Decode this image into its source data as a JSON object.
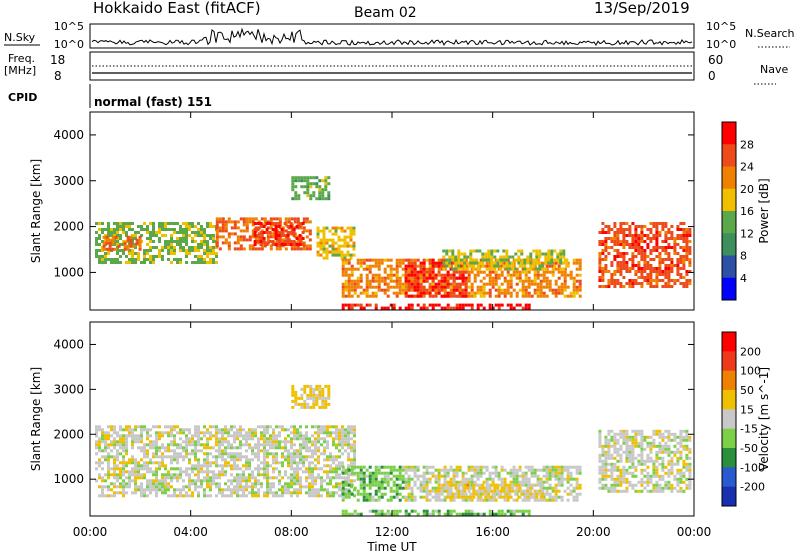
{
  "header": {
    "station": "Hokkaido East (fitACF)",
    "beam": "Beam 02",
    "date": "13/Sep/2019"
  },
  "top_panels": {
    "nsky_label": "N.Sky",
    "nsky_ticks": [
      "10^5",
      "10^0"
    ],
    "nsearch_label": "N.Search",
    "nsearch_ticks": [
      "10^5",
      "10^0"
    ],
    "freq_label_line1": "Freq.",
    "freq_label_line2": "[MHz]",
    "freq_ticks": [
      "18",
      "8"
    ],
    "nave_label": "Nave",
    "nave_ticks": [
      "60",
      "0"
    ],
    "cpid_label": "CPID",
    "cpid_value": "normal (fast) 151"
  },
  "colors": {
    "power_scale": [
      "#0000ff",
      "#2e4fa6",
      "#3d8f5c",
      "#5aa84a",
      "#f0c000",
      "#f08000",
      "#ee4a1a",
      "#ff0000"
    ],
    "velocity_scale": [
      "#1830b0",
      "#2a5ad0",
      "#2a8f3c",
      "#7cd048",
      "#c8c8c8",
      "#f0c000",
      "#f08000",
      "#ee3a1a",
      "#ff0000"
    ],
    "ground_gray": "#c0c0c0"
  },
  "chart_data": [
    {
      "type": "heatmap",
      "name": "power",
      "ylabel": "Slant Range [km]",
      "yticks": [
        "4000",
        "3000",
        "2000",
        "1000"
      ],
      "ylim": [
        180,
        4500
      ],
      "xticks": [
        "00:00",
        "04:00",
        "08:00",
        "12:00",
        "16:00",
        "20:00",
        "00:00"
      ],
      "xlim_hours": [
        0,
        24
      ],
      "colorbar_label": "Power [dB]",
      "colorbar_ticks": [
        "28",
        "24",
        "20",
        "16",
        "12",
        "8",
        "4"
      ],
      "colorbar_range": [
        0,
        32
      ],
      "regions": [
        {
          "t0": 0.2,
          "t1": 5.0,
          "r0": 1200,
          "r1": 2100,
          "v": 15
        },
        {
          "t0": 0.5,
          "t1": 2.0,
          "r0": 1500,
          "r1": 1800,
          "v": 24
        },
        {
          "t0": 5.0,
          "t1": 8.8,
          "r0": 1500,
          "r1": 2200,
          "v": 24
        },
        {
          "t0": 6.5,
          "t1": 8.5,
          "r0": 1600,
          "r1": 2100,
          "v": 28
        },
        {
          "t0": 9.0,
          "t1": 10.5,
          "r0": 1300,
          "r1": 2000,
          "v": 18
        },
        {
          "t0": 10.0,
          "t1": 19.5,
          "r0": 500,
          "r1": 1300,
          "v": 22
        },
        {
          "t0": 12.5,
          "t1": 15.0,
          "r0": 500,
          "r1": 1300,
          "v": 28
        },
        {
          "t0": 14.0,
          "t1": 19.0,
          "r0": 1100,
          "r1": 1500,
          "v": 17
        },
        {
          "t0": 10.0,
          "t1": 17.5,
          "r0": 200,
          "r1": 320,
          "v": 30
        },
        {
          "t0": 20.2,
          "t1": 23.8,
          "r0": 700,
          "r1": 2100,
          "v": 26
        },
        {
          "t0": 8.0,
          "t1": 9.5,
          "r0": 2600,
          "r1": 3100,
          "v": 14
        }
      ]
    },
    {
      "type": "heatmap",
      "name": "velocity",
      "ylabel": "Slant Range [km]",
      "yticks": [
        "4000",
        "3000",
        "2000",
        "1000"
      ],
      "ylim": [
        180,
        4500
      ],
      "xticks": [
        "00:00",
        "04:00",
        "08:00",
        "12:00",
        "16:00",
        "20:00",
        "00:00"
      ],
      "xlim_hours": [
        0,
        24
      ],
      "xlabel": "Time UT",
      "colorbar_label": "Velocity [m s^-1]",
      "colorbar_ticks": [
        "200",
        "100",
        "50",
        "15",
        "-15",
        "-50",
        "-100",
        "-200"
      ],
      "colorbar_range": [
        -250,
        250
      ],
      "regions": [
        {
          "t0": 0.2,
          "t1": 10.5,
          "r0": 600,
          "r1": 2200,
          "v": 0
        },
        {
          "t0": 10.0,
          "t1": 12.5,
          "r0": 500,
          "r1": 1300,
          "v": -60
        },
        {
          "t0": 12.5,
          "t1": 19.5,
          "r0": 500,
          "r1": 1300,
          "v": 0
        },
        {
          "t0": 14.0,
          "t1": 18.0,
          "r0": 600,
          "r1": 900,
          "v": 40
        },
        {
          "t0": 10.0,
          "t1": 17.5,
          "r0": 200,
          "r1": 320,
          "v": -60
        },
        {
          "t0": 20.2,
          "t1": 23.8,
          "r0": 700,
          "r1": 2100,
          "v": 0
        },
        {
          "t0": 8.0,
          "t1": 9.5,
          "r0": 2600,
          "r1": 3100,
          "v": 40
        }
      ]
    }
  ]
}
